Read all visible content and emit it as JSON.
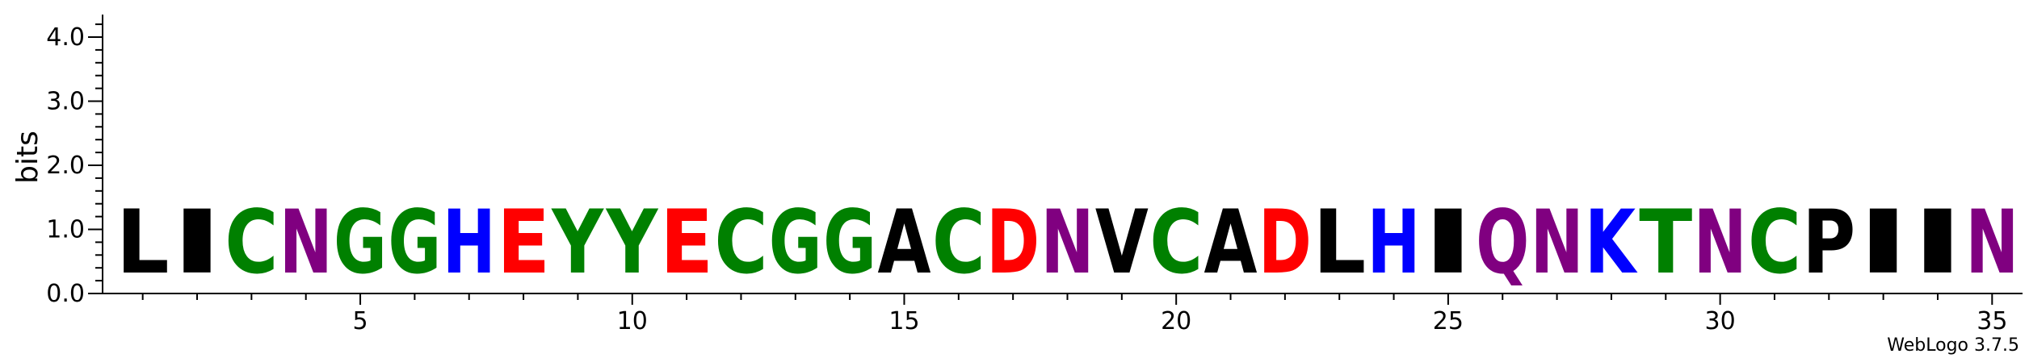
{
  "chart_data": {
    "type": "sequence-logo",
    "ylabel": "bits",
    "ylim": [
      0,
      4.3
    ],
    "y_ticks": [
      "0.0",
      "1.0",
      "2.0",
      "3.0",
      "4.0"
    ],
    "y_tick_values": [
      0,
      1,
      2,
      3,
      4
    ],
    "x_ticks": [
      "5",
      "10",
      "15",
      "20",
      "25",
      "30",
      "35"
    ],
    "x_tick_values": [
      5,
      10,
      15,
      20,
      25,
      30,
      35
    ],
    "positions": 35,
    "sequence": [
      "L",
      "I",
      "C",
      "N",
      "G",
      "G",
      "H",
      "E",
      "Y",
      "Y",
      "E",
      "C",
      "G",
      "G",
      "A",
      "C",
      "D",
      "N",
      "V",
      "C",
      "A",
      "D",
      "L",
      "H",
      "I",
      "Q",
      "N",
      "K",
      "T",
      "N",
      "C",
      "P",
      "I",
      "I",
      "N"
    ],
    "heights": [
      1.6,
      1.6,
      1.6,
      1.6,
      1.6,
      1.6,
      1.6,
      1.6,
      1.6,
      1.6,
      1.6,
      1.6,
      1.6,
      1.6,
      1.6,
      1.6,
      1.6,
      1.6,
      1.6,
      1.6,
      1.6,
      1.6,
      1.6,
      1.6,
      1.6,
      1.6,
      1.6,
      1.6,
      1.6,
      1.6,
      1.6,
      1.6,
      1.6,
      1.6,
      1.6
    ],
    "colors": {
      "black": "#000000",
      "green": "#008000",
      "purple": "#800080",
      "blue": "#0000ff",
      "red": "#ff0000"
    },
    "residue_color": {
      "A": "black",
      "V": "black",
      "L": "black",
      "I": "black",
      "P": "black",
      "F": "black",
      "M": "black",
      "W": "black",
      "G": "green",
      "S": "green",
      "T": "green",
      "Y": "green",
      "C": "green",
      "N": "purple",
      "Q": "purple",
      "K": "blue",
      "R": "blue",
      "H": "blue",
      "D": "red",
      "E": "red"
    }
  },
  "credit": "WebLogo 3.7.5"
}
